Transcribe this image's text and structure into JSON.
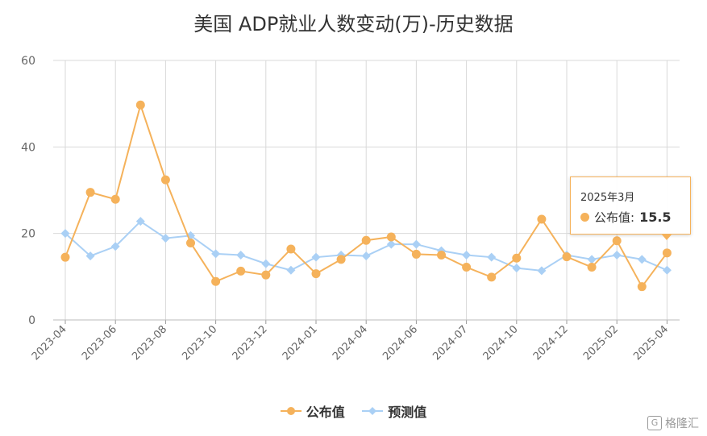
{
  "chart_data": {
    "type": "line",
    "title": "美国 ADP就业人数变动(万)-历史数据",
    "xlabel": "",
    "ylabel": "",
    "ylim": [
      0,
      60
    ],
    "yticks": [
      "0",
      "20",
      "40",
      "60"
    ],
    "x_tick_labels": [
      "2023-04",
      "2023-06",
      "2023-08",
      "2023-10",
      "2023-12",
      "2024-01",
      "2024-04",
      "2024-06",
      "2024-07",
      "2024-10",
      "2024-12",
      "2025-02",
      "2025-04"
    ],
    "series": [
      {
        "name": "公布值",
        "color": "#f5b25b",
        "marker": "circle",
        "values": [
          14.5,
          29.5,
          27.9,
          49.7,
          32.4,
          17.8,
          8.9,
          11.3,
          10.4,
          16.4,
          10.7,
          14.0,
          18.4,
          19.2,
          15.2,
          15.0,
          12.2,
          9.9,
          14.3,
          23.3,
          14.6,
          12.2,
          18.3,
          7.7,
          15.5
        ]
      },
      {
        "name": "预测值",
        "color": "#aad0f5",
        "marker": "diamond",
        "values": [
          20.0,
          14.8,
          17.0,
          22.8,
          18.9,
          19.5,
          15.3,
          15.0,
          13.0,
          11.5,
          14.5,
          15.0,
          14.8,
          17.5,
          17.5,
          16.0,
          15.0,
          14.5,
          12.0,
          11.4,
          15.0,
          14.0,
          15.0,
          14.0,
          11.5
        ]
      }
    ],
    "grid": true,
    "legend": "bottom-center"
  },
  "tooltip": {
    "date": "2025年3月",
    "label": "公布值:",
    "value": "15.5"
  },
  "watermark": "格隆汇"
}
